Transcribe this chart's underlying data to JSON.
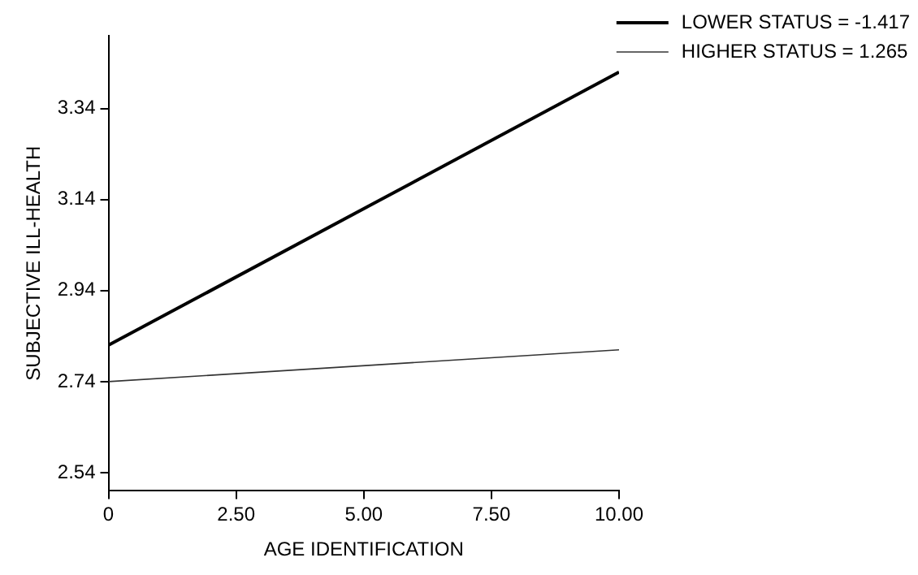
{
  "chart_data": {
    "type": "line",
    "xlabel": "AGE IDENTIFICATION",
    "ylabel": "SUBJECTIVE ILL-HEALTH",
    "x": [
      0,
      10
    ],
    "series": [
      {
        "name": "LOWER STATUS = -1.417",
        "color": "#000000",
        "values": [
          2.82,
          3.42
        ]
      },
      {
        "name": "HIGHER STATUS = 1.265",
        "color": "#333333",
        "values": [
          2.74,
          2.81
        ]
      }
    ],
    "xlim": [
      0,
      10
    ],
    "xticks": [
      {
        "value": 0,
        "label": "0"
      },
      {
        "value": 2.5,
        "label": "2.50"
      },
      {
        "value": 5,
        "label": "5.00"
      },
      {
        "value": 7.5,
        "label": "7.50"
      },
      {
        "value": 10,
        "label": "10.00"
      }
    ],
    "ylim": [
      2.5,
      3.5
    ],
    "yticks": [
      2.54,
      2.74,
      2.94,
      3.14,
      3.34
    ],
    "grid": false,
    "legend": "top right",
    "marker": "none",
    "line_style": "solid"
  }
}
